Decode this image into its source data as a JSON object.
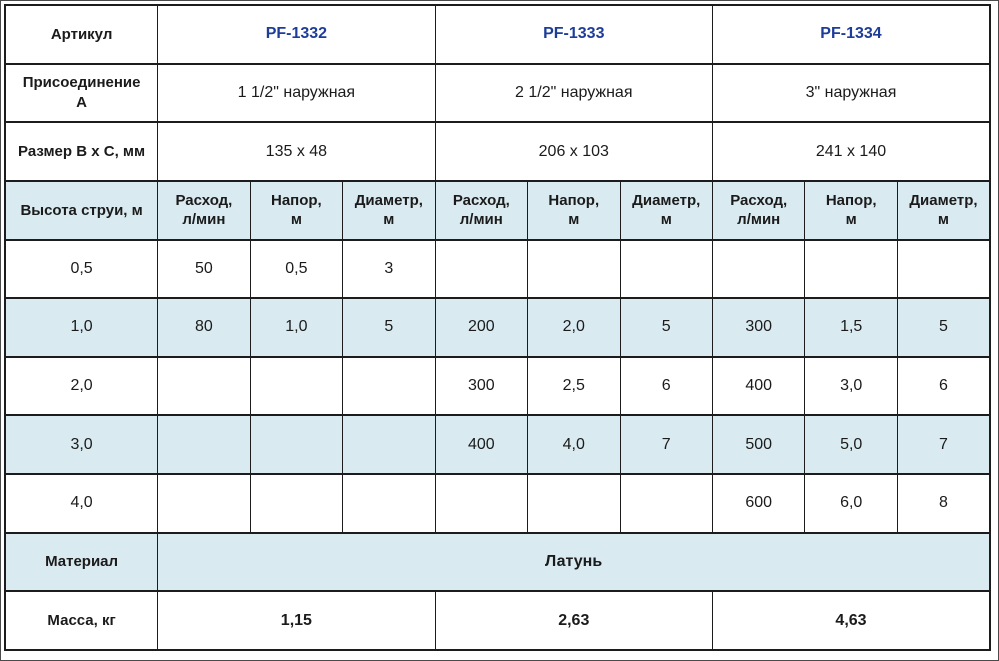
{
  "colors": {
    "stripe_bg": "#d9eaf1",
    "accent_code_text": "#1e3d99",
    "border": "#1c1c1c",
    "text": "#1b1b1b",
    "background": "#ffffff"
  },
  "table": {
    "labels": {
      "articul": "Артикул",
      "connection": "Присоединение\nА",
      "size": "Размер B x C, мм",
      "jet_height": "Высота струи, м",
      "material": "Материал",
      "mass": "Масса, кг"
    },
    "sub_headers": {
      "flow": "Расход,\nл/мин",
      "head": "Напор,\nм",
      "diameter": "Диаметр,\nм"
    },
    "products": [
      {
        "code": "PF-1332",
        "connection": "1 1/2\" наружная",
        "size": "135 x 48",
        "mass": "1,15"
      },
      {
        "code": "PF-1333",
        "connection": "2 1/2\" наружная",
        "size": "206 x 103",
        "mass": "2,63"
      },
      {
        "code": "PF-1334",
        "connection": "3\" наружная",
        "size": "241 x 140",
        "mass": "4,63"
      }
    ],
    "data_rows": [
      {
        "height": "0,5",
        "cells": [
          "50",
          "0,5",
          "3",
          "",
          "",
          "",
          "",
          "",
          ""
        ]
      },
      {
        "height": "1,0",
        "cells": [
          "80",
          "1,0",
          "5",
          "200",
          "2,0",
          "5",
          "300",
          "1,5",
          "5"
        ]
      },
      {
        "height": "2,0",
        "cells": [
          "",
          "",
          "",
          "300",
          "2,5",
          "6",
          "400",
          "3,0",
          "6"
        ]
      },
      {
        "height": "3,0",
        "cells": [
          "",
          "",
          "",
          "400",
          "4,0",
          "7",
          "500",
          "5,0",
          "7"
        ]
      },
      {
        "height": "4,0",
        "cells": [
          "",
          "",
          "",
          "",
          "",
          "",
          "600",
          "6,0",
          "8"
        ]
      }
    ],
    "material_value": "Латунь"
  }
}
